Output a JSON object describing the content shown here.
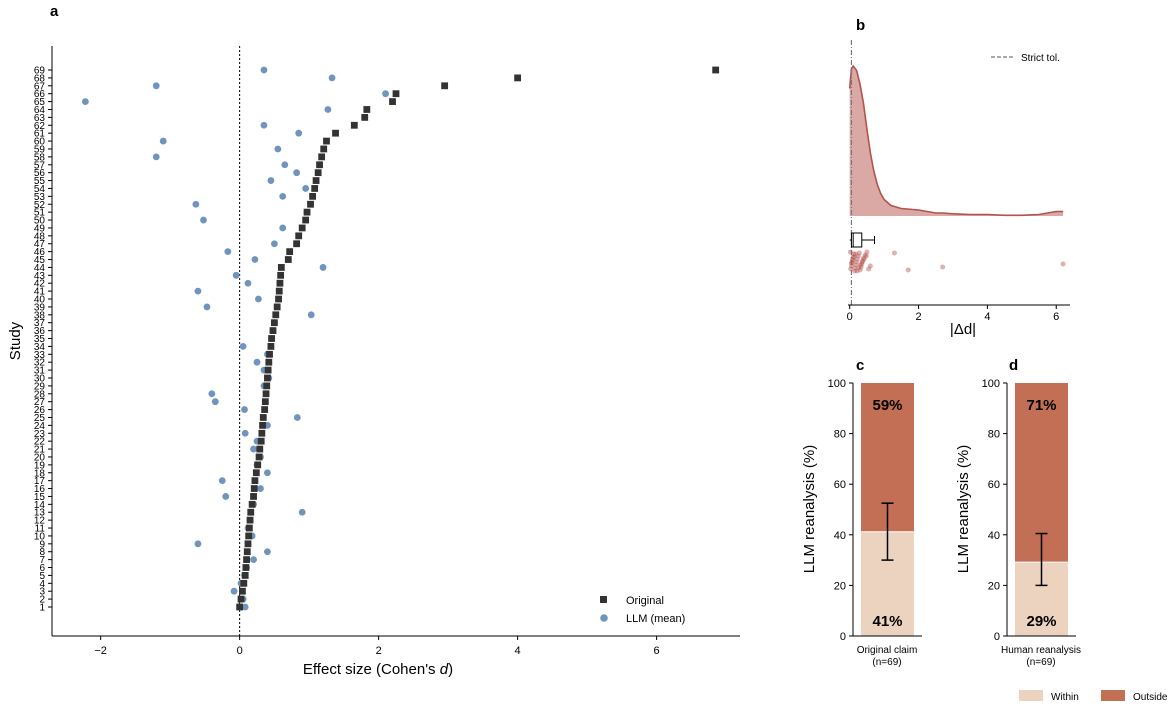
{
  "chart_data": [
    {
      "panel": "a",
      "type": "scatter",
      "xlabel_prefix": "Effect size (Cohen's ",
      "xlabel_var": "d",
      "xlabel_suffix": ")",
      "ylabel": "Study",
      "xlim": [
        -2.7,
        7.2
      ],
      "xticks": [
        -2,
        0,
        2,
        4,
        6
      ],
      "xtick_labels": [
        "−2",
        "0",
        "2",
        "4",
        "6"
      ],
      "reference_line_x": 0,
      "legend_position": "bottom-right",
      "studies": [
        1,
        2,
        3,
        4,
        5,
        6,
        7,
        8,
        9,
        10,
        11,
        12,
        13,
        14,
        15,
        16,
        17,
        18,
        19,
        20,
        21,
        22,
        23,
        24,
        25,
        26,
        27,
        28,
        29,
        30,
        31,
        32,
        33,
        34,
        35,
        36,
        37,
        38,
        39,
        40,
        41,
        42,
        43,
        44,
        45,
        46,
        47,
        48,
        49,
        50,
        51,
        52,
        53,
        54,
        55,
        56,
        57,
        58,
        59,
        60,
        61,
        62,
        63,
        64,
        65,
        66,
        67,
        68,
        69
      ],
      "series": [
        {
          "name": "Original",
          "color": "#333333",
          "marker": "square",
          "values": [
            0.0,
            0.02,
            0.04,
            0.06,
            0.08,
            0.09,
            0.1,
            0.11,
            0.12,
            0.13,
            0.14,
            0.15,
            0.16,
            0.18,
            0.2,
            0.21,
            0.22,
            0.24,
            0.26,
            0.28,
            0.29,
            0.31,
            0.32,
            0.33,
            0.34,
            0.36,
            0.37,
            0.38,
            0.39,
            0.4,
            0.41,
            0.42,
            0.43,
            0.45,
            0.46,
            0.48,
            0.5,
            0.52,
            0.54,
            0.56,
            0.57,
            0.58,
            0.59,
            0.6,
            0.7,
            0.72,
            0.82,
            0.85,
            0.9,
            0.95,
            0.97,
            1.02,
            1.05,
            1.08,
            1.1,
            1.13,
            1.15,
            1.18,
            1.21,
            1.25,
            1.38,
            1.65,
            1.8,
            1.83,
            2.2,
            2.25,
            2.95,
            4.0,
            6.85
          ]
        },
        {
          "name": "LLM (mean)",
          "color": "#6f95bd",
          "marker": "circle",
          "values": [
            0.08,
            0.05,
            -0.08,
            0.02,
            0.07,
            0.1,
            0.2,
            0.4,
            -0.6,
            0.18,
            0.12,
            0.15,
            0.9,
            0.2,
            -0.2,
            0.3,
            -0.25,
            0.4,
            0.25,
            0.3,
            0.2,
            0.25,
            0.08,
            0.4,
            0.83,
            0.07,
            -0.35,
            -0.4,
            0.35,
            0.42,
            0.35,
            0.25,
            0.4,
            0.05,
            0.46,
            0.48,
            0.5,
            1.03,
            -0.47,
            0.27,
            -0.6,
            0.12,
            -0.05,
            1.2,
            0.22,
            -0.17,
            0.5,
            0.85,
            0.62,
            -0.52,
            0.97,
            -0.63,
            0.62,
            0.95,
            0.45,
            0.82,
            0.65,
            -1.2,
            0.55,
            -1.1,
            0.85,
            0.35,
            1.8,
            1.27,
            -2.22,
            2.1,
            -1.2,
            1.33,
            0.35
          ]
        }
      ]
    },
    {
      "panel": "b",
      "type": "area",
      "xlabel": "|Δd|",
      "xlim": [
        -0.05,
        6.4
      ],
      "xticks": [
        0,
        2,
        4,
        6
      ],
      "reference_line_x": 0.05,
      "reference_line_label": "Strict tol.",
      "color": "#b5524c",
      "density_x": [
        0,
        0.05,
        0.1,
        0.2,
        0.3,
        0.4,
        0.5,
        0.6,
        0.7,
        0.8,
        0.9,
        1.0,
        1.2,
        1.5,
        2.0,
        2.5,
        2.7,
        3.0,
        3.5,
        4.0,
        4.5,
        5.0,
        5.5,
        6.0,
        6.2
      ],
      "density_y": [
        0.85,
        0.98,
        1.0,
        0.97,
        0.88,
        0.75,
        0.58,
        0.42,
        0.3,
        0.21,
        0.15,
        0.11,
        0.07,
        0.05,
        0.04,
        0.02,
        0.02,
        0.015,
        0.01,
        0.01,
        0.005,
        0.005,
        0.01,
        0.03,
        0.03
      ],
      "box": {
        "q1": 0.05,
        "median": 0.1,
        "q3": 0.35,
        "whisker_low": 0.0,
        "whisker_high": 0.72
      },
      "points": [
        0.02,
        0.03,
        0.05,
        0.07,
        0.08,
        0.1,
        0.12,
        0.14,
        0.15,
        0.18,
        0.2,
        0.22,
        0.25,
        0.28,
        0.3,
        0.33,
        0.35,
        0.38,
        0.4,
        0.45,
        0.5,
        0.55,
        0.6,
        0.05,
        0.09,
        0.13,
        0.17,
        0.21,
        0.26,
        0.31,
        0.36,
        0.42,
        0.48,
        1.3,
        1.7,
        2.7,
        6.2
      ]
    },
    {
      "panel": "c",
      "type": "bar",
      "ylabel": "LLM reanalysis (%)",
      "ylim": [
        0,
        100
      ],
      "yticks": [
        0,
        20,
        40,
        60,
        80,
        100
      ],
      "category": "Original claim",
      "n_label": "(n=69)",
      "within": 41,
      "outside": 59,
      "within_label": "41%",
      "outside_label": "59%",
      "error_bar": [
        30,
        52.5
      ]
    },
    {
      "panel": "d",
      "type": "bar",
      "ylabel": "LLM reanalysis (%)",
      "ylim": [
        0,
        100
      ],
      "yticks": [
        0,
        20,
        40,
        60,
        80,
        100
      ],
      "category": "Human reanalysis",
      "n_label": "(n=69)",
      "within": 29,
      "outside": 71,
      "within_label": "29%",
      "outside_label": "71%",
      "error_bar": [
        20,
        40.5
      ]
    }
  ],
  "legend_bottom": [
    {
      "label": "Within",
      "color": "#ecd3bf"
    },
    {
      "label": "Outside",
      "color": "#c26f55"
    }
  ]
}
